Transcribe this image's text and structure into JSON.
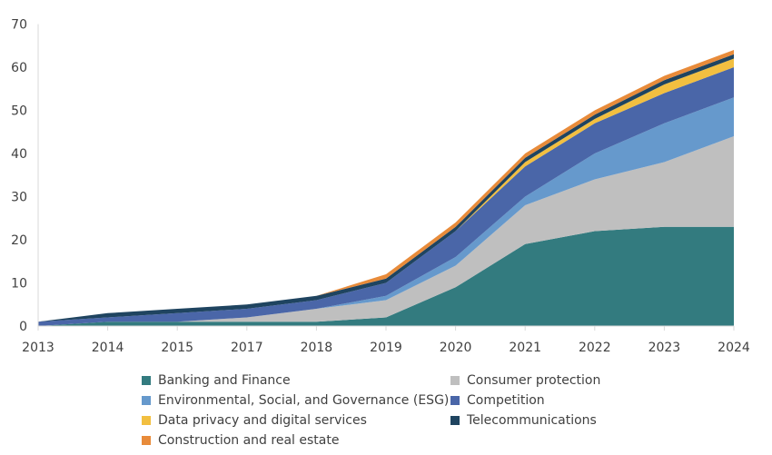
{
  "chart_data": {
    "type": "area",
    "stacked": true,
    "title": "",
    "xlabel": "",
    "ylabel": "",
    "ylim": [
      0,
      70
    ],
    "yticks": [
      0,
      10,
      20,
      30,
      40,
      50,
      60,
      70
    ],
    "grid": false,
    "legend_position": "bottom",
    "categories": [
      "2013",
      "2014",
      "2015",
      "2017",
      "2018",
      "2019",
      "2020",
      "2021",
      "2022",
      "2023",
      "2024"
    ],
    "series": [
      {
        "name": "Banking and Finance",
        "color": "#337B7F",
        "values": [
          0,
          1,
          1,
          1,
          1,
          2,
          9,
          19,
          22,
          23,
          23
        ]
      },
      {
        "name": "Consumer protection",
        "color": "#BFBFBF",
        "values": [
          0,
          0,
          0,
          1,
          3,
          4,
          5,
          9,
          12,
          15,
          21
        ]
      },
      {
        "name": "Environmental, Social, and Governance (ESG)",
        "color": "#6699CC",
        "values": [
          0,
          0,
          0,
          0,
          0,
          1,
          2,
          2,
          6,
          9,
          9
        ]
      },
      {
        "name": "Competition",
        "color": "#4A66A8",
        "values": [
          1,
          1,
          2,
          2,
          2,
          3,
          6,
          7,
          7,
          7,
          7
        ]
      },
      {
        "name": "Data privacy and digital services",
        "color": "#F2BF40",
        "values": [
          0,
          0,
          0,
          0,
          0,
          0,
          0,
          1,
          1,
          2,
          2
        ]
      },
      {
        "name": "Telecommunications",
        "color": "#1F4460",
        "values": [
          0,
          1,
          1,
          1,
          1,
          1,
          1,
          1,
          1,
          1,
          1
        ]
      },
      {
        "name": "Construction and real estate",
        "color": "#E88B3A",
        "values": [
          0,
          0,
          0,
          0,
          0,
          1,
          1,
          1,
          1,
          1,
          1
        ]
      }
    ]
  }
}
